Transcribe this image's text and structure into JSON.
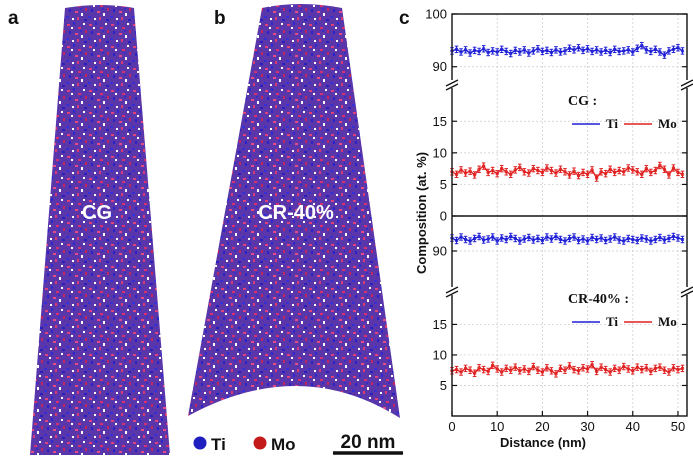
{
  "panels": {
    "a": "a",
    "b": "b",
    "c": "c"
  },
  "tips": {
    "a_label": "CG",
    "b_label": "CR-40%"
  },
  "element_legend": [
    {
      "name": "Ti",
      "color": "#1f1fbf"
    },
    {
      "name": "Mo",
      "color": "#c41a1a"
    }
  ],
  "scale_bar": "20 nm",
  "colors": {
    "ti": "#1f1fd6",
    "mo": "#e02020",
    "tip_blue": "#4b2fa8",
    "tip_red": "#d0306a"
  },
  "chart_data": {
    "type": "line",
    "xlabel": "Distance (nm)",
    "ylabel": "Composition (at. %)",
    "x_ticks": [
      "0",
      "10",
      "20",
      "30",
      "40",
      "50"
    ],
    "xlim": [
      0,
      52
    ],
    "subplots": [
      {
        "legend_title": "CG :",
        "upper_ylim": [
          89,
          100
        ],
        "upper_ticks": [
          "100",
          "90"
        ],
        "lower_ylim": [
          0,
          19
        ],
        "lower_ticks": [
          "15",
          "10",
          "5",
          "0"
        ],
        "x": [
          0,
          1,
          2,
          3,
          4,
          5,
          6,
          7,
          8,
          9,
          10,
          11,
          12,
          13,
          14,
          15,
          16,
          17,
          18,
          19,
          20,
          21,
          22,
          23,
          24,
          25,
          26,
          27,
          28,
          29,
          30,
          31,
          32,
          33,
          34,
          35,
          36,
          37,
          38,
          39,
          40,
          41,
          42,
          43,
          44,
          45,
          46,
          47,
          48,
          49,
          50,
          51
        ],
        "series": [
          {
            "name": "Ti",
            "values": [
              93.0,
              93.3,
              92.8,
              93.2,
              92.6,
              93.1,
              92.9,
              93.4,
              92.7,
              93.0,
              92.8,
              93.3,
              92.9,
              92.5,
              93.1,
              92.8,
              93.2,
              92.6,
              93.0,
              93.4,
              92.9,
              93.1,
              92.7,
              93.2,
              92.8,
              93.0,
              93.5,
              93.2,
              93.6,
              93.1,
              93.4,
              92.9,
              93.2,
              92.8,
              93.1,
              92.7,
              93.3,
              92.9,
              93.0,
              93.2,
              92.8,
              93.5,
              94.0,
              93.2,
              92.9,
              93.3,
              92.8,
              92.2,
              93.0,
              93.3,
              93.6,
              93.0
            ]
          },
          {
            "name": "Mo",
            "values": [
              7.0,
              6.6,
              7.3,
              6.8,
              7.1,
              6.5,
              7.4,
              7.9,
              6.9,
              7.2,
              6.7,
              7.5,
              7.0,
              6.6,
              7.3,
              7.7,
              7.0,
              6.8,
              7.5,
              7.2,
              6.9,
              7.6,
              7.2,
              6.8,
              7.4,
              7.0,
              6.5,
              7.1,
              6.4,
              6.9,
              6.6,
              7.3,
              6.0,
              7.0,
              6.7,
              7.4,
              6.9,
              7.2,
              7.0,
              7.6,
              7.3,
              7.0,
              6.6,
              7.5,
              6.9,
              7.2,
              8.0,
              7.4,
              6.5,
              7.6,
              6.9,
              6.6
            ]
          }
        ]
      },
      {
        "legend_title": "CR-40% :",
        "upper_ylim": [
          85,
          97
        ],
        "upper_ticks": [
          "90"
        ],
        "lower_ylim": [
          0,
          19
        ],
        "lower_ticks": [
          "15",
          "10",
          "5"
        ],
        "x": [
          0,
          1,
          2,
          3,
          4,
          5,
          6,
          7,
          8,
          9,
          10,
          11,
          12,
          13,
          14,
          15,
          16,
          17,
          18,
          19,
          20,
          21,
          22,
          23,
          24,
          25,
          26,
          27,
          28,
          29,
          30,
          31,
          32,
          33,
          34,
          35,
          36,
          37,
          38,
          39,
          40,
          41,
          42,
          43,
          44,
          45,
          46,
          47,
          48,
          49,
          50,
          51
        ],
        "series": [
          {
            "name": "Ti",
            "values": [
              92.6,
              92.1,
              92.8,
              92.3,
              92.0,
              92.5,
              92.9,
              92.2,
              92.4,
              92.8,
              92.0,
              92.6,
              92.3,
              92.9,
              92.5,
              92.0,
              92.4,
              92.7,
              92.2,
              92.5,
              92.1,
              92.8,
              92.4,
              92.9,
              92.3,
              92.0,
              92.5,
              92.8,
              92.1,
              92.4,
              92.0,
              92.7,
              92.3,
              92.6,
              92.1,
              92.4,
              92.8,
              92.2,
              92.0,
              92.5,
              92.3,
              92.1,
              92.6,
              92.4,
              92.0,
              92.3,
              92.7,
              92.2,
              92.5,
              92.9,
              92.6,
              92.3
            ]
          },
          {
            "name": "Mo",
            "values": [
              7.4,
              7.6,
              7.2,
              7.8,
              7.5,
              7.0,
              7.9,
              7.6,
              7.3,
              8.3,
              7.7,
              7.2,
              7.8,
              7.5,
              8.0,
              7.4,
              7.7,
              7.3,
              8.1,
              7.5,
              7.2,
              7.9,
              7.4,
              6.9,
              7.8,
              7.5,
              8.2,
              7.6,
              7.4,
              7.9,
              7.7,
              8.4,
              7.3,
              8.0,
              7.6,
              7.2,
              7.8,
              7.5,
              8.1,
              7.7,
              7.4,
              8.0,
              7.6,
              7.9,
              7.3,
              7.8,
              8.0,
              7.5,
              7.2,
              7.9,
              7.6,
              7.8
            ]
          }
        ]
      }
    ]
  }
}
